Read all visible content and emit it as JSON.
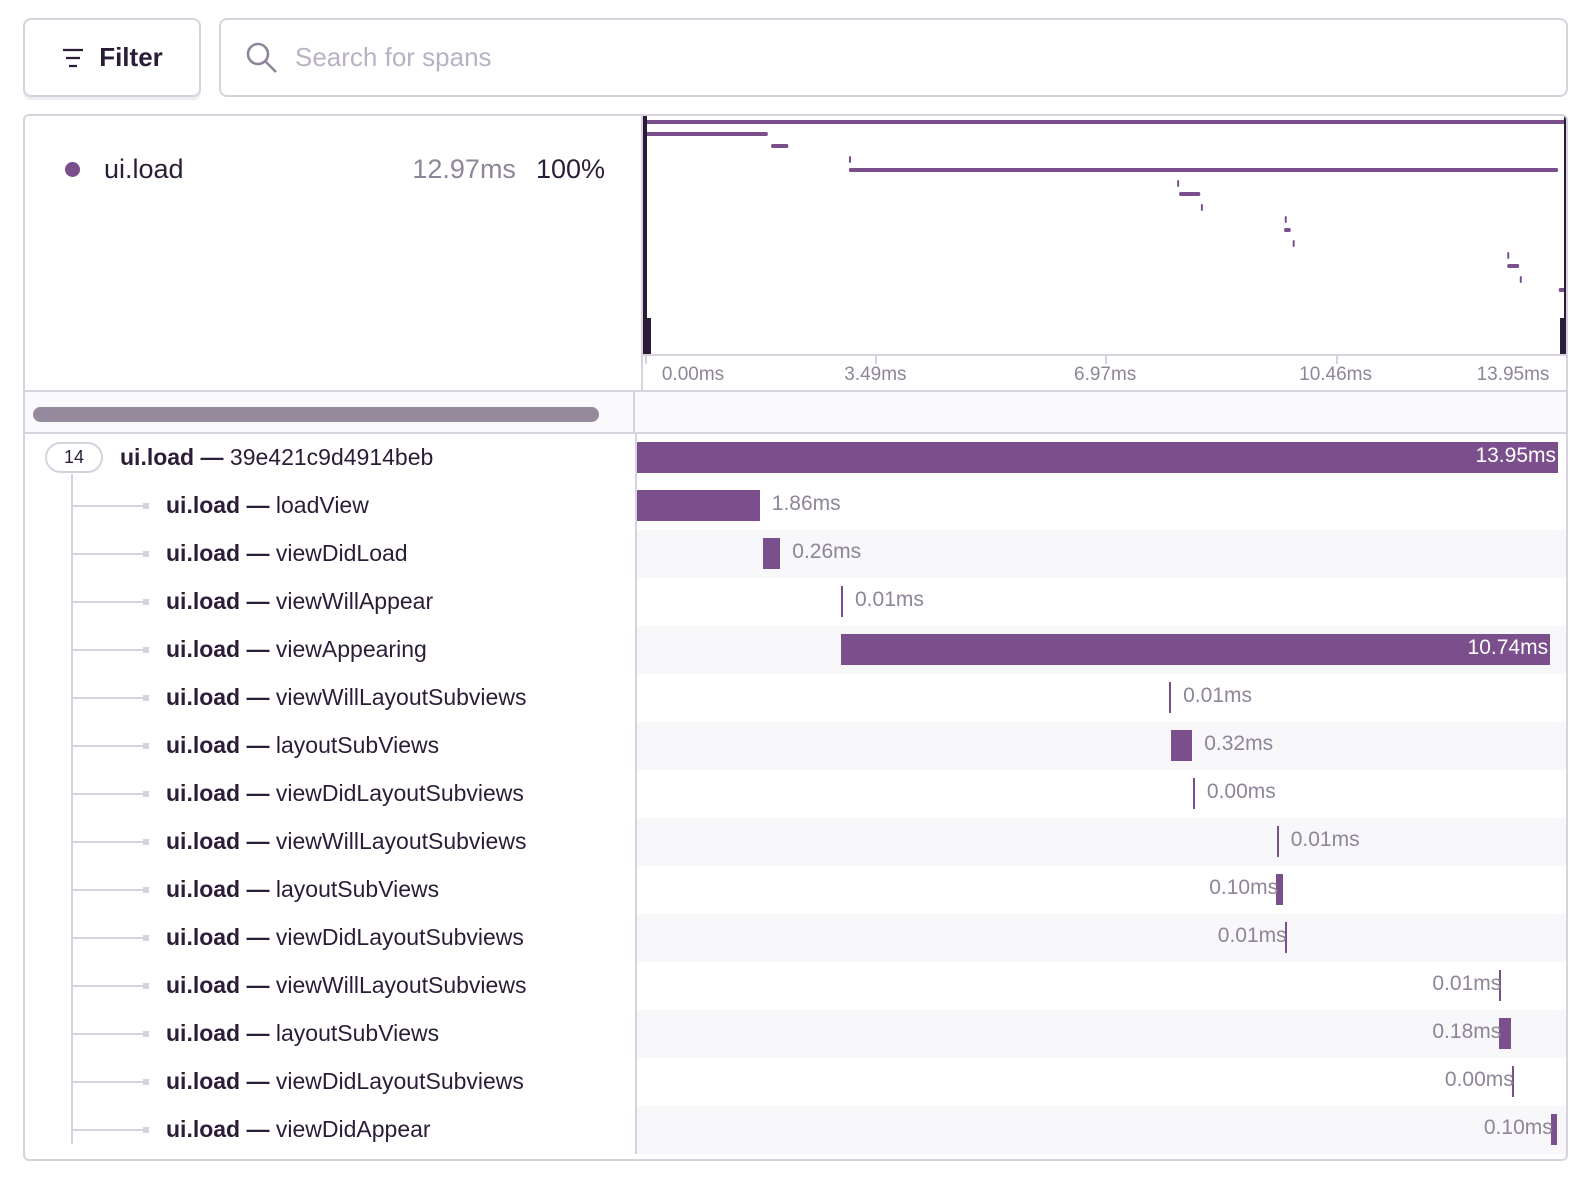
{
  "toolbar": {
    "filter_label": "Filter",
    "filter_icon": "filter-lines-icon",
    "search_icon": "magnifier-icon",
    "search_placeholder": "Search for spans",
    "search_value": ""
  },
  "legend": {
    "op": "ui.load",
    "duration": "12.97ms",
    "percent": "100%",
    "color": "#7a4f8c"
  },
  "axis": {
    "ticks": [
      "0.00ms",
      "3.49ms",
      "6.97ms",
      "10.46ms",
      "13.95ms"
    ],
    "tick_values": [
      0,
      3.49,
      6.97,
      10.46,
      13.95
    ],
    "max": 13.95
  },
  "root": {
    "child_count": "14",
    "op": "ui.load",
    "sep": " — ",
    "desc": "39e421c9d4914beb",
    "start": 0,
    "duration": 13.95,
    "duration_label": "13.95ms"
  },
  "spans": [
    {
      "op": "ui.load",
      "desc": "loadView",
      "start": 0,
      "duration": 1.86,
      "duration_label": "1.86ms"
    },
    {
      "op": "ui.load",
      "desc": "viewDidLoad",
      "start": 1.91,
      "duration": 0.26,
      "duration_label": "0.26ms"
    },
    {
      "op": "ui.load",
      "desc": "viewWillAppear",
      "start": 3.09,
      "duration": 0.01,
      "duration_label": "0.01ms"
    },
    {
      "op": "ui.load",
      "desc": "viewAppearing",
      "start": 3.09,
      "duration": 10.74,
      "duration_label": "10.74ms"
    },
    {
      "op": "ui.load",
      "desc": "viewWillLayoutSubviews",
      "start": 8.06,
      "duration": 0.01,
      "duration_label": "0.01ms"
    },
    {
      "op": "ui.load",
      "desc": "layoutSubViews",
      "start": 8.09,
      "duration": 0.32,
      "duration_label": "0.32ms"
    },
    {
      "op": "ui.load",
      "desc": "viewDidLayoutSubviews",
      "start": 8.42,
      "duration": 0.0,
      "duration_label": "0.00ms"
    },
    {
      "op": "ui.load",
      "desc": "viewWillLayoutSubviews",
      "start": 9.69,
      "duration": 0.01,
      "duration_label": "0.01ms"
    },
    {
      "op": "ui.load",
      "desc": "layoutSubViews",
      "start": 9.68,
      "duration": 0.1,
      "duration_label": "0.10ms"
    },
    {
      "op": "ui.load",
      "desc": "viewDidLayoutSubviews",
      "start": 9.81,
      "duration": 0.01,
      "duration_label": "0.01ms"
    },
    {
      "op": "ui.load",
      "desc": "viewWillLayoutSubviews",
      "start": 13.06,
      "duration": 0.01,
      "duration_label": "0.01ms"
    },
    {
      "op": "ui.load",
      "desc": "layoutSubViews",
      "start": 13.06,
      "duration": 0.18,
      "duration_label": "0.18ms"
    },
    {
      "op": "ui.load",
      "desc": "viewDidLayoutSubviews",
      "start": 13.25,
      "duration": 0.0,
      "duration_label": "0.00ms"
    },
    {
      "op": "ui.load",
      "desc": "viewDidAppear",
      "start": 13.84,
      "duration": 0.1,
      "duration_label": "0.10ms"
    }
  ]
}
